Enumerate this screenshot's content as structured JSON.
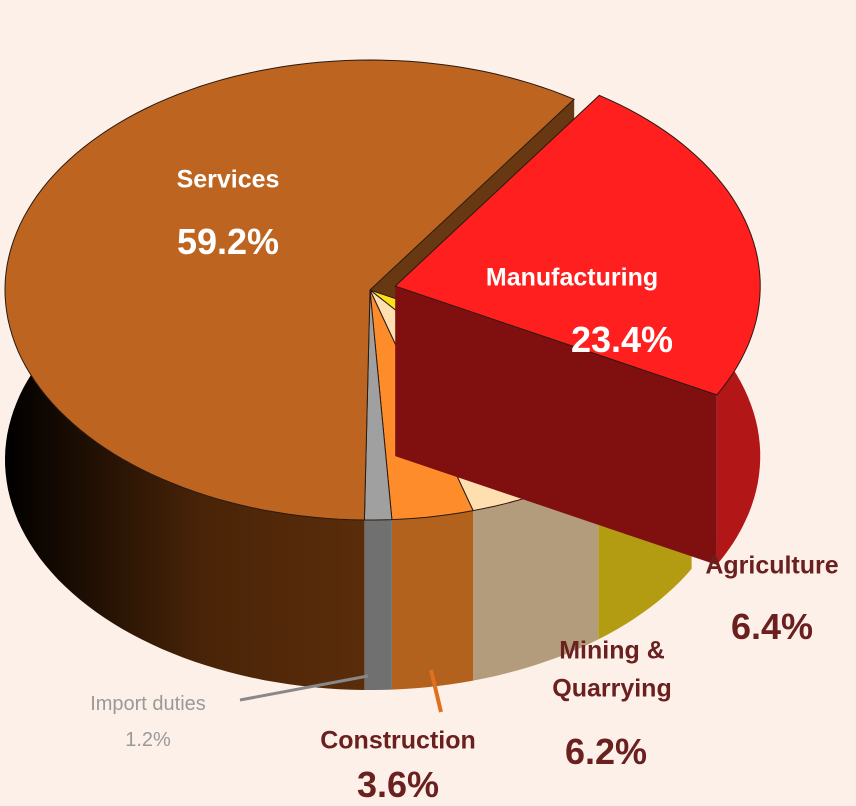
{
  "chart_data": {
    "type": "pie",
    "categories": [
      "Manufacturing",
      "Agriculture",
      "Mining & Quarrying",
      "Construction",
      "Import duties",
      "Services"
    ],
    "values": [
      23.4,
      6.4,
      6.2,
      3.6,
      1.2,
      59.2
    ],
    "value_labels": [
      "23.4%",
      "6.4%",
      "6.2%",
      "3.6%",
      "1.2%",
      "59.2%"
    ],
    "colors": [
      "#ff1f1f",
      "#ffdf1a",
      "#ffdfb0",
      "#ff8c2a",
      "#a0a0a0",
      "#bd6520"
    ],
    "exploded": "Manufacturing"
  }
}
